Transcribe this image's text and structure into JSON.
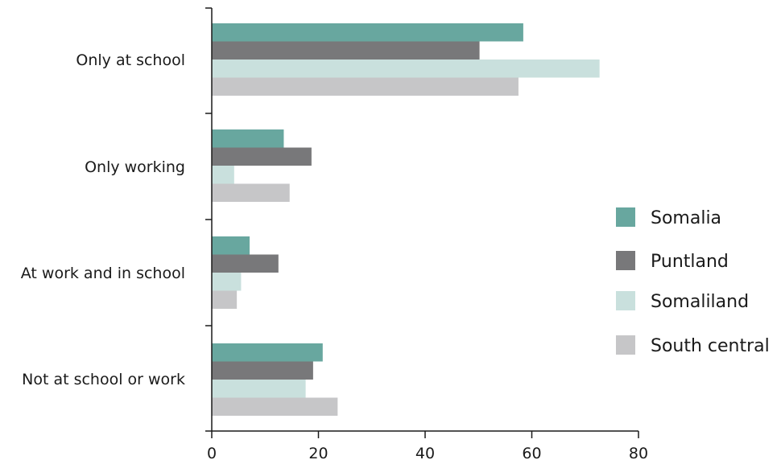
{
  "chart_data": {
    "type": "bar",
    "orientation": "horizontal",
    "title": "",
    "xlabel": "",
    "ylabel": "",
    "categories": [
      "Only at school",
      "Only working",
      "At work and in school",
      "Not at school or work"
    ],
    "series": [
      {
        "name": "Somalia",
        "color": "#68a79f",
        "values": [
          58.4,
          13.5,
          7.1,
          20.8
        ]
      },
      {
        "name": "Puntland",
        "color": "#78787a",
        "values": [
          50.2,
          18.7,
          12.5,
          19.0
        ]
      },
      {
        "name": "Somaliland",
        "color": "#c9e0dd",
        "values": [
          72.7,
          4.2,
          5.5,
          17.6
        ]
      },
      {
        "name": "South central",
        "color": "#c6c6c8",
        "values": [
          57.5,
          14.6,
          4.7,
          23.6
        ]
      }
    ],
    "xlim": [
      0,
      80
    ],
    "xticks": [
      "0",
      "20",
      "40",
      "60",
      "80"
    ],
    "grid": false,
    "legend_position": "right"
  }
}
